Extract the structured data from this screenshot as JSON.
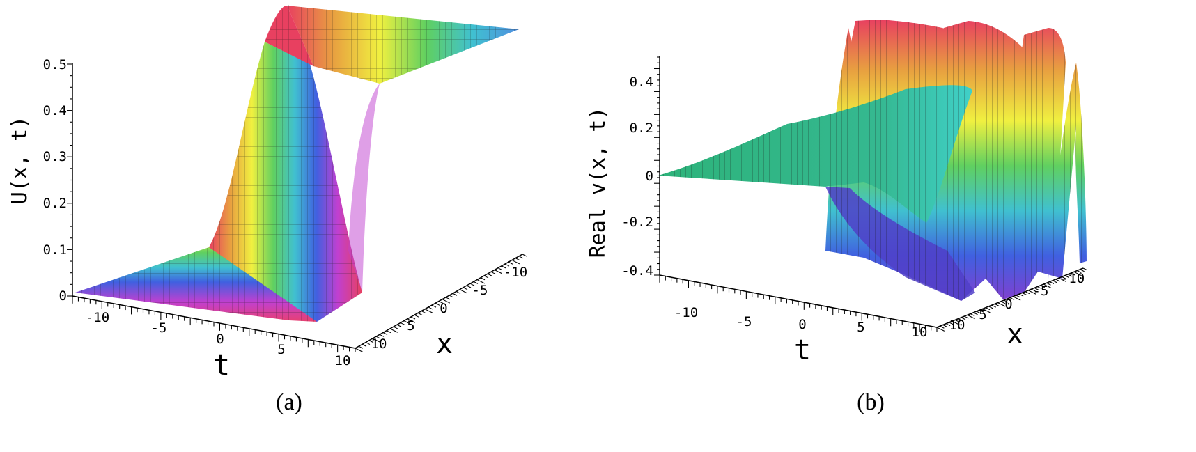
{
  "chart_data": [
    {
      "type": "surface3d",
      "caption": "(a)",
      "zlabel": "U(x, t)",
      "tlabel": "t",
      "xlabel": "x",
      "zticks": [
        "0",
        "0.1",
        "0.2",
        "0.3",
        "0.4",
        "0.5"
      ],
      "zlim": [
        0,
        0.5
      ],
      "tticks": [
        "-10",
        "-5",
        "0",
        "5",
        "10"
      ],
      "xticks": [
        "-10",
        "-5",
        "0",
        "5",
        "10"
      ],
      "tlim": [
        -12,
        12
      ],
      "xlim": [
        -12,
        12
      ],
      "colormap": [
        "#e0405a",
        "#e8a040",
        "#f0f040",
        "#60d060",
        "#40c0d0",
        "#4060e0",
        "#c040d0",
        "#e0405a"
      ]
    },
    {
      "type": "surface3d",
      "caption": "(b)",
      "zlabel": "Real v(x, t)",
      "tlabel": "t",
      "xlabel": "x",
      "zticks": [
        "-0.4",
        "-0.2",
        "0",
        "0.2",
        "0.4"
      ],
      "zlim": [
        -0.45,
        0.5
      ],
      "tticks": [
        "-10",
        "-5",
        "0",
        "5",
        "10"
      ],
      "xticks": [
        "-10",
        "-5",
        "0",
        "5",
        "10"
      ],
      "tlim": [
        -12,
        12
      ],
      "xlim": [
        -12,
        12
      ],
      "colormap": [
        "#8040d0",
        "#4060e0",
        "#40c0d0",
        "#60d060",
        "#f0f040",
        "#e8a040",
        "#e0405a"
      ]
    }
  ]
}
